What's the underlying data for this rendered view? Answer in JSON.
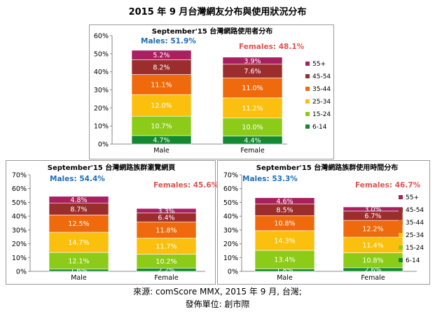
{
  "page_title": "2015 年 9 月台灣網友分布與使用狀況分布",
  "footer": {
    "source": "來源: comScore MMX, 2015 年 9 月, 台灣;",
    "publisher": "發佈單位: 創市際"
  },
  "colors": {
    "55+": "#a8205f",
    "45-54": "#9b2d2d",
    "35-44": "#ef6a0c",
    "25-34": "#fbc00e",
    "15-24": "#8ccc18",
    "6-14": "#138a2f",
    "male_label": "#1f6fb4",
    "female_label": "#e0534e"
  },
  "chart_data": [
    {
      "type": "bar",
      "stacked": true,
      "title": "September'15 台灣網路使用者分布",
      "categories": [
        "Male",
        "Female"
      ],
      "totals_labels": [
        "Males: 51.9%",
        "Females: 48.1%"
      ],
      "totals": [
        51.9,
        48.1
      ],
      "ylim": [
        0,
        60
      ],
      "yticks": [
        "0%",
        "10%",
        "20%",
        "30%",
        "40%",
        "50%",
        "60%"
      ],
      "grid": false,
      "legend": "right",
      "series": [
        {
          "name": "6-14",
          "values": [
            4.7,
            4.4
          ],
          "labels": [
            "4.7%",
            "4.4%"
          ]
        },
        {
          "name": "15-24",
          "values": [
            10.7,
            10.0
          ],
          "labels": [
            "10.7%",
            "10.0%"
          ]
        },
        {
          "name": "25-34",
          "values": [
            12.0,
            11.2
          ],
          "labels": [
            "12.0%",
            "11.2%"
          ]
        },
        {
          "name": "35-44",
          "values": [
            11.1,
            11.0
          ],
          "labels": [
            "11.1%",
            "11.0%"
          ]
        },
        {
          "name": "45-54",
          "values": [
            8.2,
            7.6
          ],
          "labels": [
            "8.2%",
            "7.6%"
          ]
        },
        {
          "name": "55+",
          "values": [
            5.2,
            3.9
          ],
          "labels": [
            "5.2%",
            "3.9%"
          ]
        }
      ]
    },
    {
      "type": "bar",
      "stacked": true,
      "title": "September'15 台灣網路族群瀏覽網頁",
      "categories": [
        "Male",
        "Female"
      ],
      "totals_labels": [
        "Males: 54.4%",
        "Females: 45.6%"
      ],
      "totals": [
        54.4,
        45.6
      ],
      "ylim": [
        0,
        70
      ],
      "yticks": [
        "0%",
        "10%",
        "20%",
        "30%",
        "40%",
        "50%",
        "60%",
        "70%"
      ],
      "grid": false,
      "legend": "none",
      "series": [
        {
          "name": "6-14",
          "values": [
            1.6,
            2.2
          ],
          "labels": [
            "1.6%",
            "2.2%"
          ]
        },
        {
          "name": "15-24",
          "values": [
            12.1,
            10.2
          ],
          "labels": [
            "12.1%",
            "10.2%"
          ]
        },
        {
          "name": "25-34",
          "values": [
            14.7,
            11.7
          ],
          "labels": [
            "14.7%",
            "11.7%"
          ]
        },
        {
          "name": "35-44",
          "values": [
            12.5,
            11.8
          ],
          "labels": [
            "12.5%",
            "11.8%"
          ]
        },
        {
          "name": "45-54",
          "values": [
            8.7,
            6.4
          ],
          "labels": [
            "8.7%",
            "6.4%"
          ]
        },
        {
          "name": "55+",
          "values": [
            4.8,
            3.3
          ],
          "labels": [
            "4.8%",
            "3.3%"
          ]
        }
      ]
    },
    {
      "type": "bar",
      "stacked": true,
      "title": "September'15 台灣網路族群使用時間分布",
      "categories": [
        "Male",
        "Female"
      ],
      "totals_labels": [
        "Males: 53.3%",
        "Females: 46.7%"
      ],
      "totals": [
        53.3,
        46.7
      ],
      "ylim": [
        0,
        70
      ],
      "yticks": [
        "0%",
        "10%",
        "20%",
        "30%",
        "40%",
        "50%",
        "60%",
        "70%"
      ],
      "grid": false,
      "legend": "right",
      "series": [
        {
          "name": "6-14",
          "values": [
            1.8,
            2.6
          ],
          "labels": [
            "1.8%",
            "2.6%"
          ]
        },
        {
          "name": "15-24",
          "values": [
            13.4,
            10.8
          ],
          "labels": [
            "13.4%",
            "10.8%"
          ]
        },
        {
          "name": "25-34",
          "values": [
            14.3,
            11.4
          ],
          "labels": [
            "14.3%",
            "11.4%"
          ]
        },
        {
          "name": "35-44",
          "values": [
            10.8,
            12.2
          ],
          "labels": [
            "10.8%",
            "12.2%"
          ]
        },
        {
          "name": "45-54",
          "values": [
            8.5,
            6.7
          ],
          "labels": [
            "8.5%",
            "6.7%"
          ]
        },
        {
          "name": "55+",
          "values": [
            4.6,
            3.0
          ],
          "labels": [
            "4.6%",
            "3.0%"
          ]
        }
      ]
    }
  ]
}
